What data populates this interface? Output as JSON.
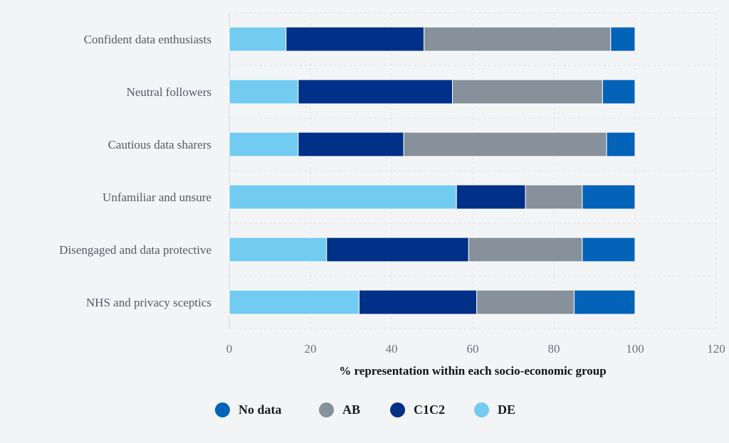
{
  "chart_data": {
    "type": "bar",
    "orientation": "horizontal",
    "stacked": true,
    "categories": [
      "Confident data enthusiasts",
      "Neutral followers",
      "Cautious data sharers",
      "Unfamiliar and unsure",
      "Disengaged and data protective",
      "NHS and privacy sceptics"
    ],
    "series": [
      {
        "name": "DE",
        "color": "#72cbf0",
        "values": [
          14,
          17,
          17,
          56,
          24,
          32
        ]
      },
      {
        "name": "C1C2",
        "color": "#003087",
        "values": [
          34,
          38,
          26,
          17,
          35,
          29
        ]
      },
      {
        "name": "AB",
        "color": "#86919b",
        "values": [
          46,
          37,
          50,
          14,
          28,
          24
        ]
      },
      {
        "name": "No data",
        "color": "#0263b8",
        "values": [
          6,
          8,
          7,
          13,
          13,
          15
        ]
      }
    ],
    "legend_order": [
      "No data",
      "AB",
      "C1C2",
      "DE"
    ],
    "xlabel": "% representation within each socio-economic group",
    "ylabel": "",
    "xlim": [
      0,
      120
    ],
    "xticks": [
      0,
      20,
      40,
      60,
      80,
      100,
      120
    ],
    "grid": true,
    "legend_position": "bottom"
  }
}
